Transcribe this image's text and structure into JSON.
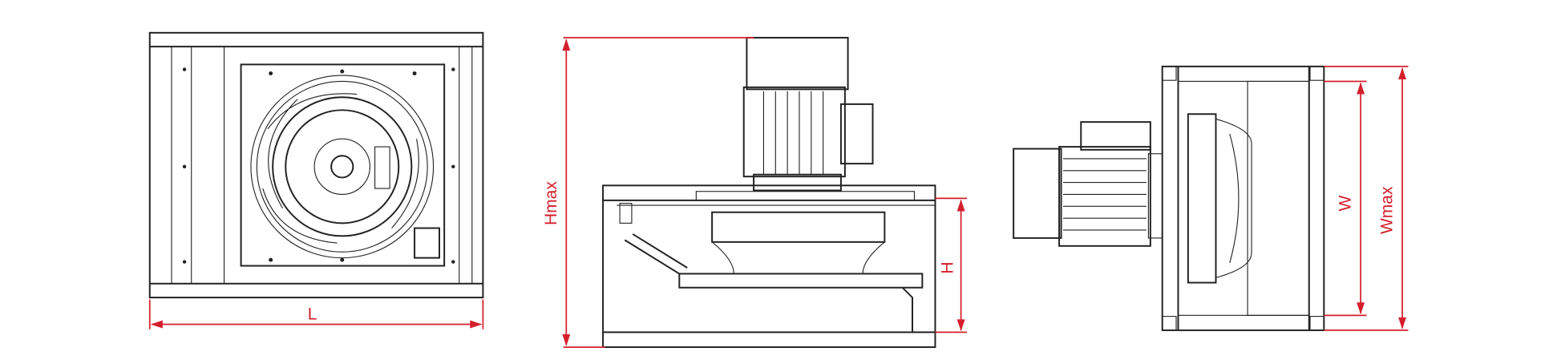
{
  "dimensions": {
    "length": "L",
    "max_height": "Hmax",
    "height": "H",
    "width": "W",
    "max_width": "Wmax"
  }
}
